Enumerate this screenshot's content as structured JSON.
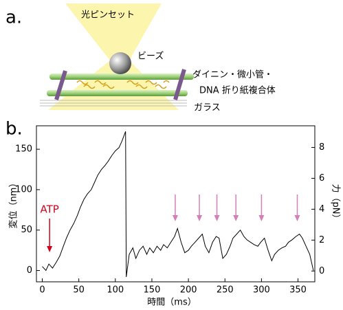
{
  "diagram": {
    "panel_label": "a.",
    "beam": "光ピンセット",
    "bead": "ビーズ",
    "complex": [
      "ダイニン・微小管・",
      "DNA 折り紙複合体"
    ],
    "glass": "ガラス"
  },
  "chart_data": {
    "type": "line",
    "panel_label": "b.",
    "xlabel": "時間（ms）",
    "ylabel": "変位（nm）",
    "y2label": "力（pN）",
    "color": "#000000",
    "x": [
      0,
      5,
      9,
      14,
      19,
      24,
      28,
      33,
      38,
      43,
      48,
      52,
      57,
      62,
      67,
      71,
      76,
      81,
      86,
      90,
      95,
      100,
      105,
      109,
      114,
      115,
      119,
      124,
      128,
      133,
      138,
      143,
      147,
      152,
      157,
      162,
      166,
      171,
      176,
      181,
      185,
      190,
      195,
      200,
      204,
      209,
      214,
      219,
      223,
      228,
      233,
      238,
      242,
      247,
      252,
      257,
      261,
      266,
      271,
      276,
      280,
      285,
      290,
      295,
      299,
      304,
      309,
      314,
      318,
      323,
      328,
      333,
      337,
      342,
      347,
      352,
      356,
      361,
      366,
      371
    ],
    "values": [
      5,
      0,
      8,
      3,
      10,
      18,
      28,
      40,
      50,
      58,
      68,
      78,
      88,
      95,
      100,
      108,
      118,
      125,
      130,
      135,
      142,
      148,
      152,
      160,
      172,
      -8,
      20,
      28,
      15,
      25,
      30,
      20,
      28,
      22,
      30,
      25,
      32,
      28,
      35,
      42,
      52,
      35,
      22,
      25,
      30,
      35,
      40,
      45,
      30,
      22,
      35,
      42,
      40,
      15,
      20,
      30,
      40,
      45,
      50,
      42,
      38,
      35,
      32,
      30,
      35,
      40,
      25,
      12,
      20,
      25,
      28,
      30,
      35,
      38,
      42,
      45,
      40,
      30,
      20,
      0
    ],
    "xlim": [
      -8,
      373
    ],
    "xticks": [
      0,
      50,
      100,
      150,
      200,
      250,
      300,
      350
    ],
    "ylim": [
      -14,
      179
    ],
    "yticks": [
      0,
      50,
      100,
      150
    ],
    "y2lim": [
      -0.7,
      9.4
    ],
    "y2ticks": [
      0,
      2,
      4,
      6,
      8
    ],
    "atp": {
      "text": "ATP",
      "x": 10,
      "color": "#d0021b"
    },
    "event_markers": {
      "x": [
        182,
        215,
        239,
        265,
        300,
        349
      ],
      "color": "#d57fb8"
    }
  }
}
